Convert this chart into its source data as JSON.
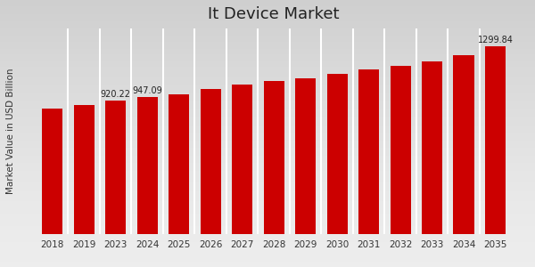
{
  "title": "It Device Market",
  "ylabel": "Market Value in USD Billion",
  "bar_color": "#cc0000",
  "background_color_top": "#e8e8e8",
  "background_color_bottom": "#f8f8f8",
  "categories": [
    "2018",
    "2019",
    "2023",
    "2024",
    "2025",
    "2026",
    "2027",
    "2028",
    "2029",
    "2030",
    "2031",
    "2032",
    "2033",
    "2034",
    "2035"
  ],
  "values": [
    870,
    893,
    920.22,
    947.09,
    968,
    1005,
    1035,
    1058,
    1078,
    1105,
    1135,
    1162,
    1195,
    1238,
    1299.84
  ],
  "labeled_bars": {
    "2023": "920.22",
    "2024": "947.09",
    "2035": "1299.84"
  },
  "ylim": [
    0,
    1420
  ],
  "title_fontsize": 13,
  "label_fontsize": 7,
  "tick_fontsize": 7.5,
  "bottom_strip_color": "#cc0000",
  "divider_color": "#ffffff"
}
